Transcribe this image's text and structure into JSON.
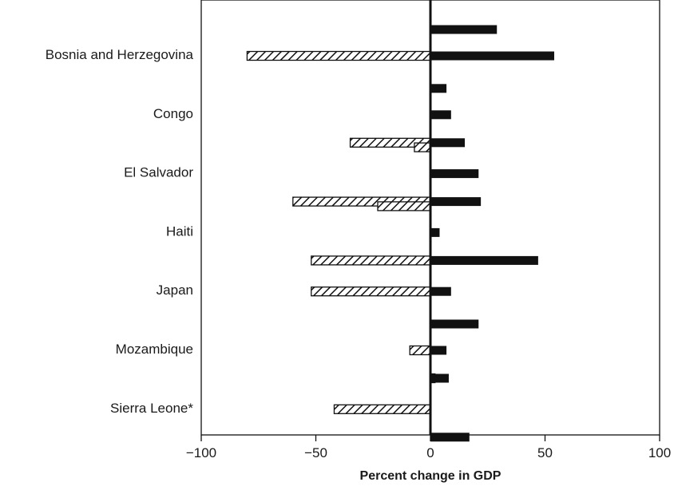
{
  "chart_data": {
    "type": "bar",
    "orientation": "horizontal",
    "title": "",
    "xlabel": "Percent change in GDP",
    "ylabel": "",
    "xlim": [
      -100,
      100
    ],
    "xticks": [
      -100,
      -50,
      0,
      50,
      100
    ],
    "xtick_labels": [
      "−100",
      "−50",
      "0",
      "50",
      "100"
    ],
    "categories": [
      "Bosnia and Herzegovina",
      "Congo",
      "El Salvador",
      "Haiti",
      "Japan",
      "Mozambique",
      "Sierra Leone*"
    ],
    "legend": "none",
    "grid": false,
    "series": [
      {
        "style": "hatched",
        "values": [
          [
            null,
            -80,
            null
          ],
          [
            null,
            null,
            -35
          ],
          [
            -7,
            null,
            -60
          ],
          [
            -23,
            null,
            -52
          ],
          [
            null,
            -52,
            null
          ],
          [
            null,
            -9,
            2
          ],
          [
            null,
            -42,
            null
          ]
        ]
      },
      {
        "style": "solid black",
        "values": [
          [
            29,
            54,
            null
          ],
          [
            7,
            9,
            15
          ],
          [
            null,
            21,
            22
          ],
          [
            null,
            4,
            47
          ],
          [
            null,
            9,
            null
          ],
          [
            21,
            7,
            8
          ],
          [
            null,
            null,
            17
          ]
        ]
      }
    ]
  }
}
